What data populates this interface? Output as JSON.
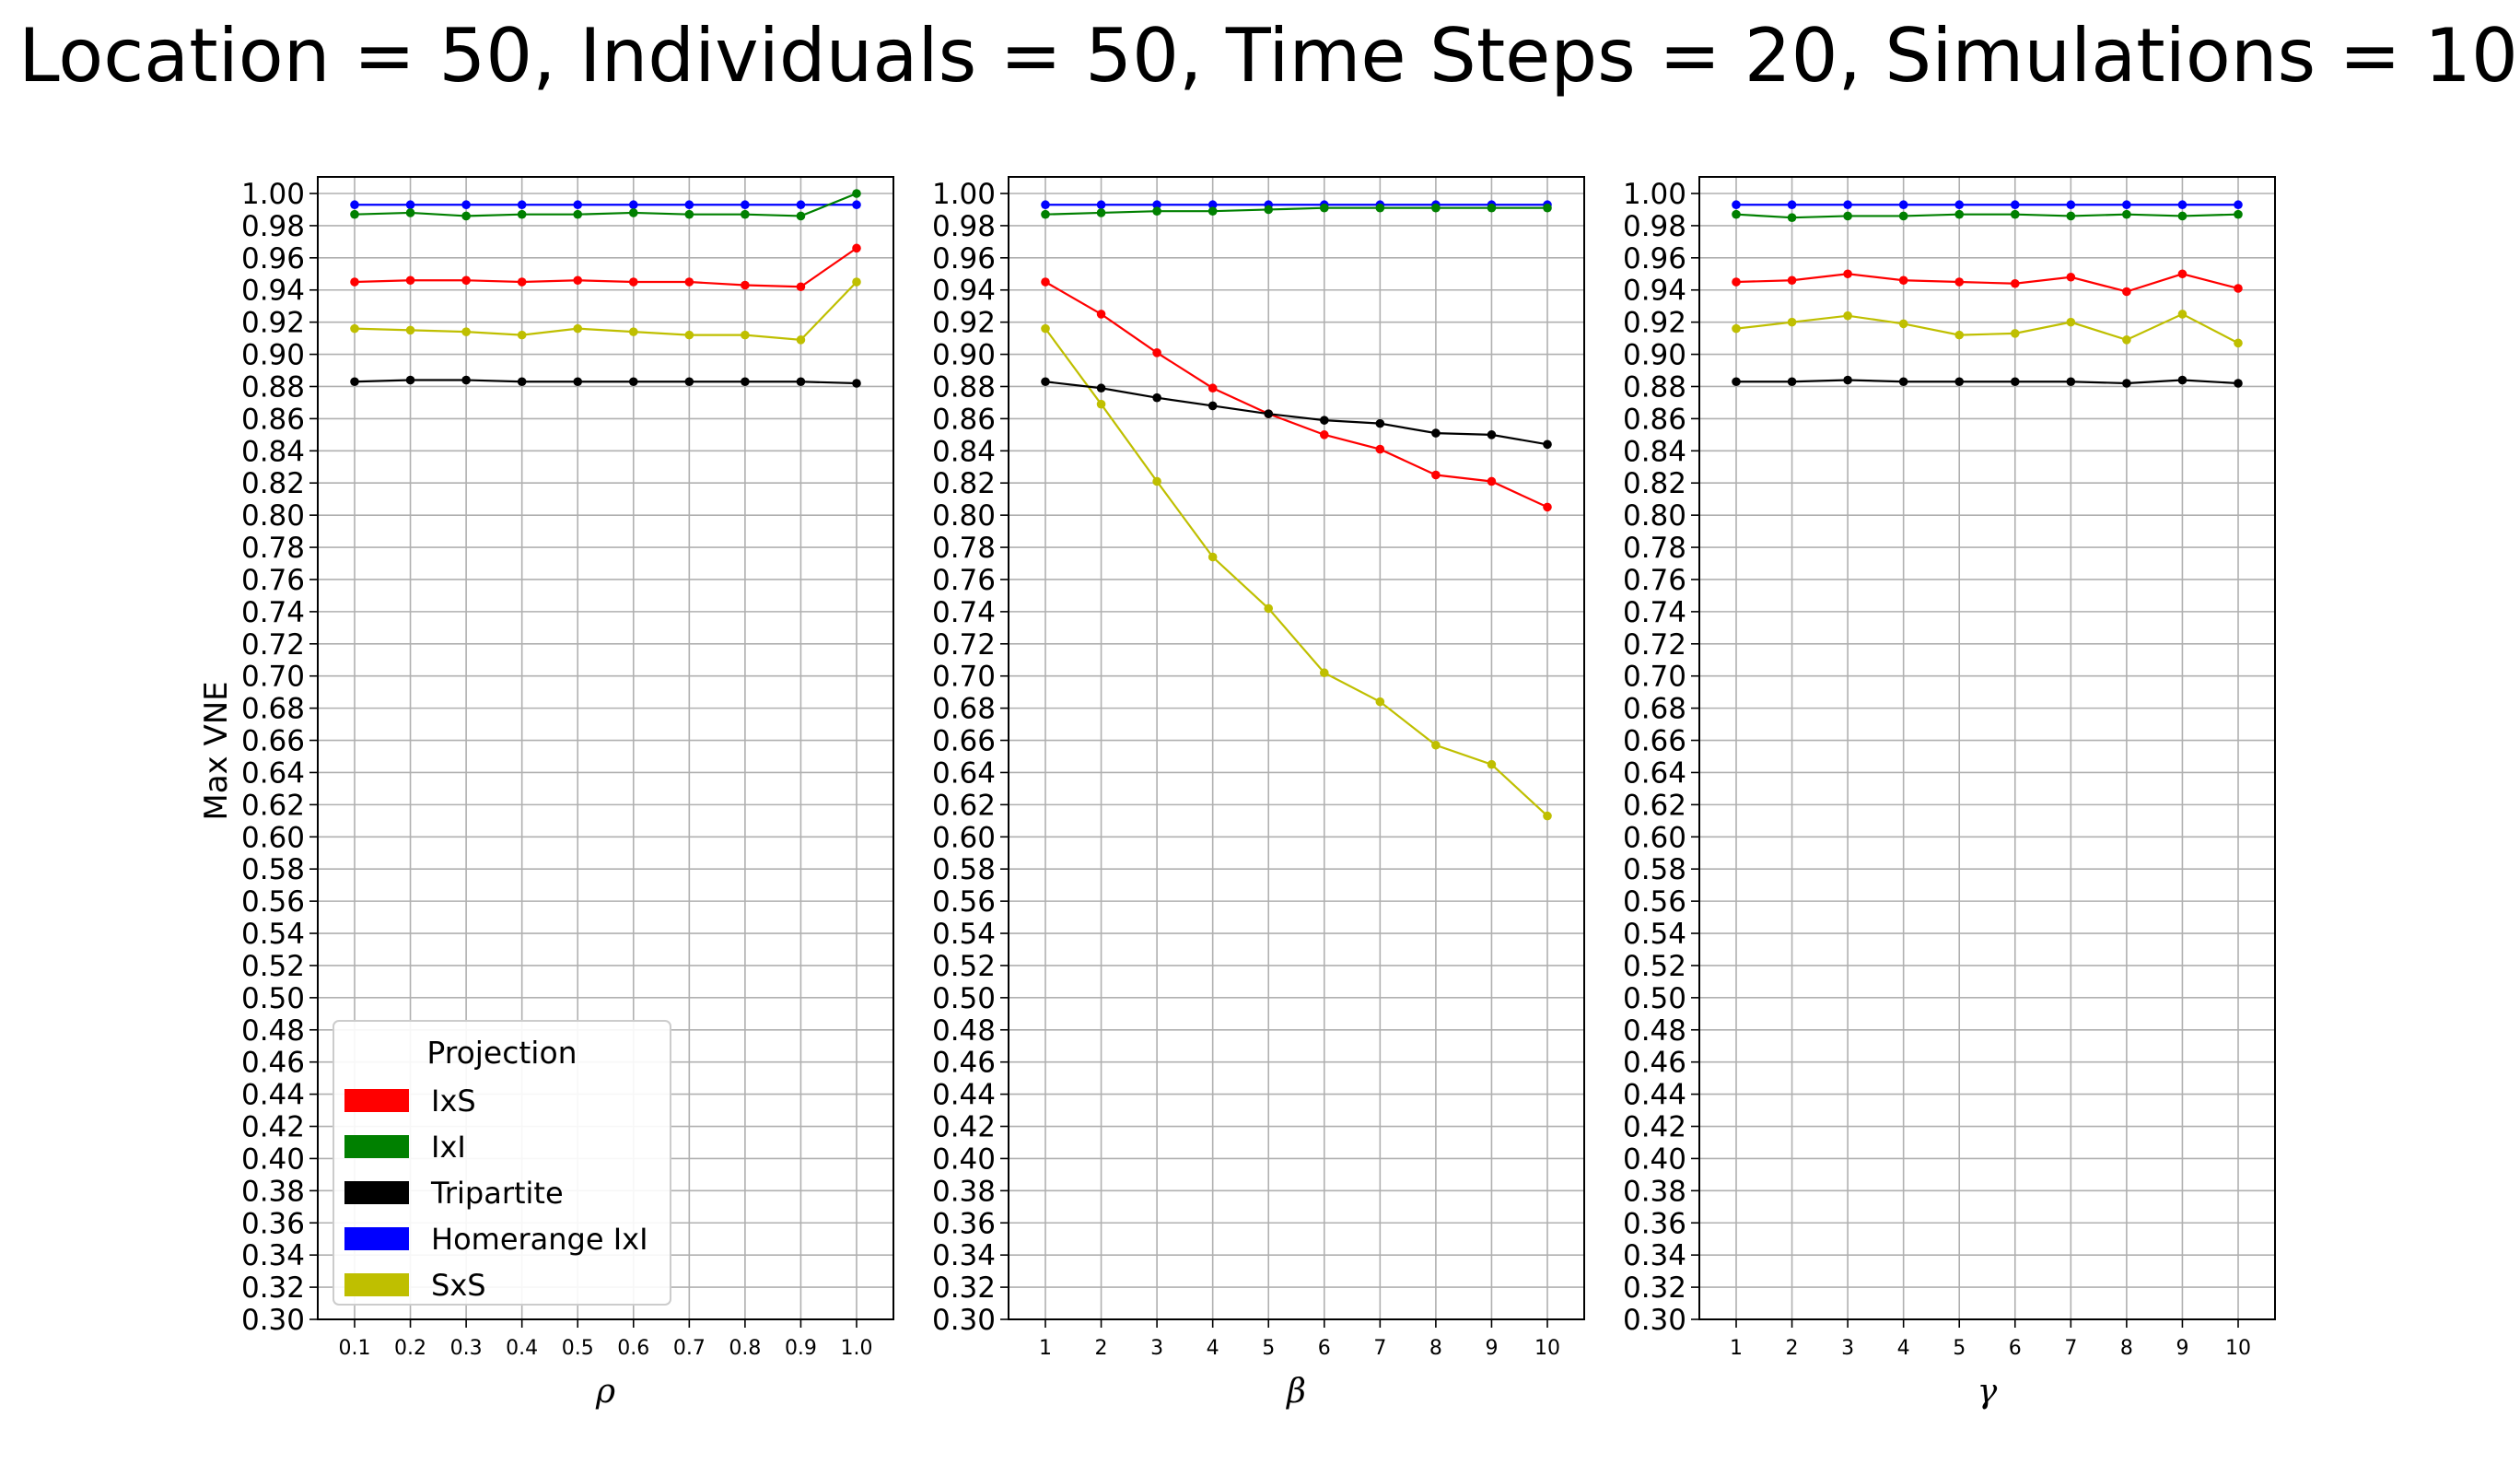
{
  "suptitle": "Location = 50, Individuals = 50, Time Steps = 20, Simulations = 10",
  "ylabel": "Max VNE",
  "ylim": [
    0.3,
    1.0
  ],
  "yticks": [
    "0.30",
    "0.32",
    "0.34",
    "0.36",
    "0.38",
    "0.40",
    "0.42",
    "0.44",
    "0.46",
    "0.48",
    "0.50",
    "0.52",
    "0.54",
    "0.56",
    "0.58",
    "0.60",
    "0.62",
    "0.64",
    "0.66",
    "0.68",
    "0.70",
    "0.72",
    "0.74",
    "0.76",
    "0.78",
    "0.80",
    "0.82",
    "0.84",
    "0.86",
    "0.88",
    "0.90",
    "0.92",
    "0.94",
    "0.96",
    "0.98",
    "1.00"
  ],
  "legend": {
    "title": "Projection",
    "location": "lower-left of first panel",
    "entries": [
      {
        "label": "IxS",
        "color": "#ff0000"
      },
      {
        "label": "IxI",
        "color": "#008000"
      },
      {
        "label": "Tripartite",
        "color": "#000000"
      },
      {
        "label": "Homerange IxI",
        "color": "#0000ff"
      },
      {
        "label": "SxS",
        "color": "#bfbf00"
      }
    ]
  },
  "chart_data": [
    {
      "type": "line",
      "xlabel": "ρ",
      "categories": [
        "0.1",
        "0.2",
        "0.3",
        "0.4",
        "0.5",
        "0.6",
        "0.7",
        "0.8",
        "0.9",
        "1.0"
      ],
      "ylabel": "Max VNE",
      "ylim": [
        0.3,
        1.0
      ],
      "grid": true,
      "series": [
        {
          "name": "Homerange IxI",
          "color": "#0000ff",
          "values": [
            0.993,
            0.993,
            0.993,
            0.993,
            0.993,
            0.993,
            0.993,
            0.993,
            0.993,
            0.993
          ]
        },
        {
          "name": "IxI",
          "color": "#008000",
          "values": [
            0.987,
            0.988,
            0.986,
            0.987,
            0.987,
            0.988,
            0.987,
            0.987,
            0.986,
            1.0
          ]
        },
        {
          "name": "IxS",
          "color": "#ff0000",
          "values": [
            0.945,
            0.946,
            0.946,
            0.945,
            0.946,
            0.945,
            0.945,
            0.943,
            0.942,
            0.966
          ]
        },
        {
          "name": "SxS",
          "color": "#bfbf00",
          "values": [
            0.916,
            0.915,
            0.914,
            0.912,
            0.916,
            0.914,
            0.912,
            0.912,
            0.909,
            0.945
          ]
        },
        {
          "name": "Tripartite",
          "color": "#000000",
          "values": [
            0.883,
            0.884,
            0.884,
            0.883,
            0.883,
            0.883,
            0.883,
            0.883,
            0.883,
            0.882
          ]
        }
      ]
    },
    {
      "type": "line",
      "xlabel": "β",
      "categories": [
        "1",
        "2",
        "3",
        "4",
        "5",
        "6",
        "7",
        "8",
        "9",
        "10"
      ],
      "ylim": [
        0.3,
        1.0
      ],
      "grid": true,
      "series": [
        {
          "name": "Homerange IxI",
          "color": "#0000ff",
          "values": [
            0.993,
            0.993,
            0.993,
            0.993,
            0.993,
            0.993,
            0.993,
            0.993,
            0.993,
            0.993
          ]
        },
        {
          "name": "IxI",
          "color": "#008000",
          "values": [
            0.987,
            0.988,
            0.989,
            0.989,
            0.99,
            0.991,
            0.991,
            0.991,
            0.991,
            0.991
          ]
        },
        {
          "name": "IxS",
          "color": "#ff0000",
          "values": [
            0.945,
            0.925,
            0.901,
            0.879,
            0.863,
            0.85,
            0.841,
            0.825,
            0.821,
            0.805
          ]
        },
        {
          "name": "SxS",
          "color": "#bfbf00",
          "values": [
            0.916,
            0.869,
            0.821,
            0.774,
            0.742,
            0.702,
            0.684,
            0.657,
            0.645,
            0.613
          ]
        },
        {
          "name": "Tripartite",
          "color": "#000000",
          "values": [
            0.883,
            0.879,
            0.873,
            0.868,
            0.863,
            0.859,
            0.857,
            0.851,
            0.85,
            0.844
          ]
        }
      ]
    },
    {
      "type": "line",
      "xlabel": "γ",
      "categories": [
        "1",
        "2",
        "3",
        "4",
        "5",
        "6",
        "7",
        "8",
        "9",
        "10"
      ],
      "ylim": [
        0.3,
        1.0
      ],
      "grid": true,
      "series": [
        {
          "name": "Homerange IxI",
          "color": "#0000ff",
          "values": [
            0.993,
            0.993,
            0.993,
            0.993,
            0.993,
            0.993,
            0.993,
            0.993,
            0.993,
            0.993
          ]
        },
        {
          "name": "IxI",
          "color": "#008000",
          "values": [
            0.987,
            0.985,
            0.986,
            0.986,
            0.987,
            0.987,
            0.986,
            0.987,
            0.986,
            0.987
          ]
        },
        {
          "name": "IxS",
          "color": "#ff0000",
          "values": [
            0.945,
            0.946,
            0.95,
            0.946,
            0.945,
            0.944,
            0.948,
            0.939,
            0.95,
            0.941
          ]
        },
        {
          "name": "SxS",
          "color": "#bfbf00",
          "values": [
            0.916,
            0.92,
            0.924,
            0.919,
            0.912,
            0.913,
            0.92,
            0.909,
            0.925,
            0.907
          ]
        },
        {
          "name": "Tripartite",
          "color": "#000000",
          "values": [
            0.883,
            0.883,
            0.884,
            0.883,
            0.883,
            0.883,
            0.883,
            0.882,
            0.884,
            0.882
          ]
        }
      ]
    }
  ]
}
